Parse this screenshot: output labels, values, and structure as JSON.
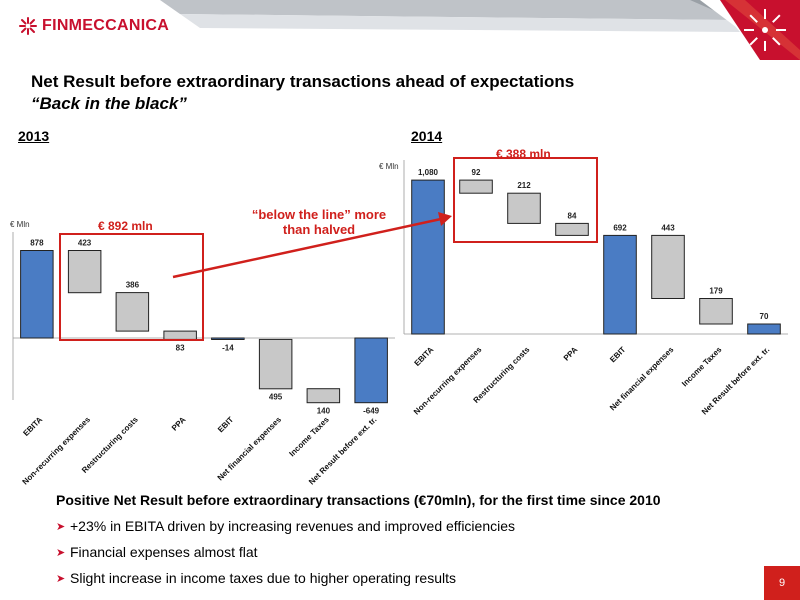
{
  "header": {
    "logo_text": "FINMECCANICA",
    "title": "Net Result before extraordinary transactions ahead of expectations",
    "subtitle": "“Back in the black”"
  },
  "chart_data": [
    {
      "type": "bar",
      "title": "2013",
      "unit": "€ Mln",
      "categories": [
        "EBITA",
        "Non-recurring expenses",
        "Restructuring costs",
        "PPA",
        "EBIT",
        "Net financial expenses",
        "Income Taxes",
        "Net Result before ext. tr."
      ],
      "values": [
        878,
        -423,
        -386,
        -83,
        -14,
        -495,
        -140,
        -649
      ],
      "data_labels": [
        "878",
        "423",
        "386",
        "83",
        "-14",
        "495",
        "140",
        "-649"
      ],
      "bar_kinds": [
        "total",
        "delta",
        "delta",
        "delta",
        "total",
        "delta",
        "delta",
        "total"
      ],
      "ylim": [
        -800,
        1000
      ],
      "callout": "€ 892 mln"
    },
    {
      "type": "bar",
      "title": "2014",
      "unit": "€ Mln",
      "categories": [
        "EBITA",
        "Non-recurring expenses",
        "Restructuring costs",
        "PPA",
        "EBIT",
        "Net financial expenses",
        "Income Taxes",
        "Net Result before ext. tr."
      ],
      "values": [
        1080,
        -92,
        -212,
        -84,
        692,
        -443,
        -179,
        70
      ],
      "data_labels": [
        "1,080",
        "92",
        "212",
        "84",
        "692",
        "443",
        "179",
        "70"
      ],
      "bar_kinds": [
        "total",
        "delta",
        "delta",
        "delta",
        "total",
        "delta",
        "delta",
        "total"
      ],
      "ylim": [
        0,
        1250
      ],
      "callout": "€ 388 mln"
    }
  ],
  "annotation": "“below the line” more than halved",
  "section": {
    "title": "Positive Net Result before extraordinary transactions (€70mln), for the first time since 2010",
    "bullets": [
      "+23% in EBITA driven by increasing revenues and improved efficiencies",
      "Financial expenses almost flat",
      "Slight increase in income taxes due to higher operating results"
    ]
  },
  "page_number": "9",
  "colors": {
    "accent": "#d0201c",
    "total_bar": "#4a7cc4",
    "delta_bar": "#c8c8c8"
  }
}
